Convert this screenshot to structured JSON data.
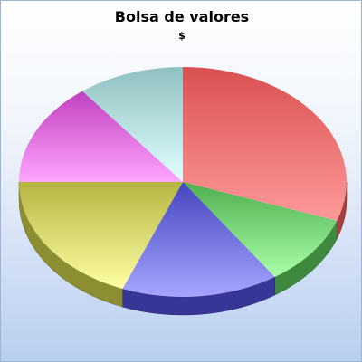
{
  "chart_data": {
    "type": "pie",
    "title": "Bolsa de valores",
    "subtitle": "$",
    "three_d": true,
    "legend": "none",
    "slices": [
      {
        "value": 30.5,
        "color": "#d95050",
        "light": "#ff9a9a"
      },
      {
        "value": 10.0,
        "color": "#4faf4f",
        "light": "#a8ffa8"
      },
      {
        "value": 15.5,
        "color": "#4545c0",
        "light": "#a5a5ff"
      },
      {
        "value": 19.0,
        "color": "#b5b540",
        "light": "#ffffa5"
      },
      {
        "value": 14.5,
        "color": "#c040c0",
        "light": "#ffa5ff"
      },
      {
        "value": 10.5,
        "color": "#90c0c0",
        "light": "#e0ffff"
      }
    ]
  }
}
